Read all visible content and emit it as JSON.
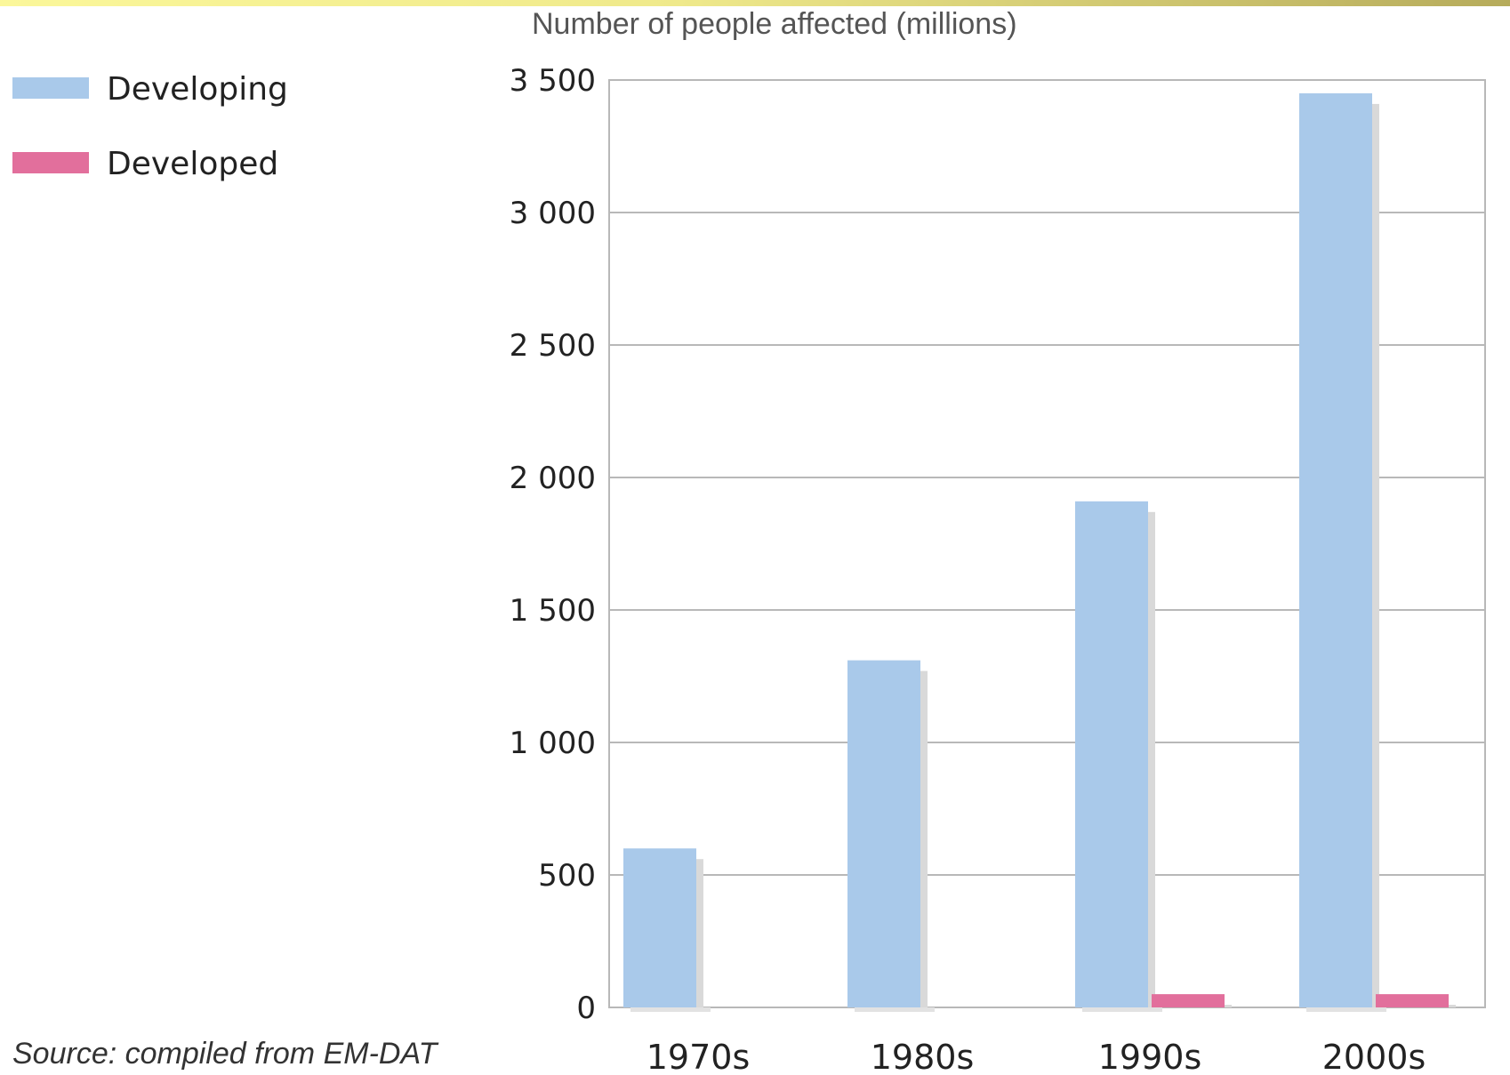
{
  "chart_data": {
    "type": "bar",
    "title": "Number of people affected (millions)",
    "categories": [
      "1970s",
      "1980s",
      "1990s",
      "2000s"
    ],
    "series": [
      {
        "name": "Developing",
        "color": "#a9c9ea",
        "values": [
          600,
          1310,
          1910,
          3450
        ]
      },
      {
        "name": "Developed",
        "color": "#e26f9c",
        "values": [
          0,
          0,
          50,
          50
        ]
      }
    ],
    "ylim": [
      0,
      3500
    ],
    "yticks": [
      0,
      500,
      1000,
      1500,
      2000,
      2500,
      3000,
      3500
    ],
    "ytick_labels": [
      "0",
      "500",
      "1 000",
      "1 500",
      "2 000",
      "2 500",
      "3 000",
      "3 500"
    ],
    "grid": true,
    "legend_position": "top-left"
  },
  "source": "Source: compiled from EM-DAT"
}
